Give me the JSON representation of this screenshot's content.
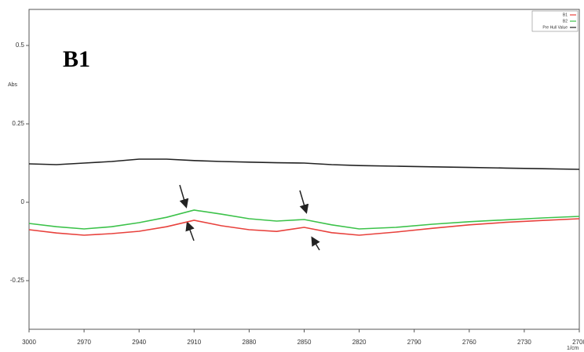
{
  "chart_data": {
    "type": "line",
    "annotation": "B1",
    "y_label": "Abs",
    "x_label": "1/cm",
    "x": [
      3000,
      2985,
      2970,
      2955,
      2940,
      2925,
      2910,
      2895,
      2880,
      2865,
      2850,
      2835,
      2820,
      2800,
      2780,
      2760,
      2740,
      2720,
      2700
    ],
    "series": [
      {
        "name": "B1",
        "color": "#e8413c",
        "values": [
          -0.0875,
          -0.098,
          -0.105,
          -0.1,
          -0.0925,
          -0.078,
          -0.0575,
          -0.075,
          -0.0875,
          -0.093,
          -0.08,
          -0.097,
          -0.105,
          -0.095,
          -0.083,
          -0.072,
          -0.064,
          -0.058,
          -0.0525
        ]
      },
      {
        "name": "B2",
        "color": "#3cc24a",
        "values": [
          -0.0675,
          -0.078,
          -0.085,
          -0.078,
          -0.065,
          -0.048,
          -0.025,
          -0.038,
          -0.0525,
          -0.06,
          -0.055,
          -0.072,
          -0.085,
          -0.08,
          -0.07,
          -0.062,
          -0.056,
          -0.05,
          -0.045
        ]
      },
      {
        "name": "Pre Hull Value",
        "color": "#222222",
        "values": [
          0.1225,
          0.12,
          0.125,
          0.13,
          0.1375,
          0.1375,
          0.133,
          0.13,
          0.128,
          0.126,
          0.125,
          0.12,
          0.117,
          0.115,
          0.113,
          0.111,
          0.109,
          0.107,
          0.105
        ]
      }
    ],
    "xlim": [
      3000,
      2700
    ],
    "xticks": [
      3000,
      2970,
      2940,
      2910,
      2880,
      2850,
      2820,
      2790,
      2760,
      2730,
      2700
    ],
    "ylim": [
      -0.405,
      0.615
    ],
    "yticks": [
      -0.25,
      0,
      0.25,
      0.5
    ],
    "grid": false,
    "legend": "top-right"
  }
}
